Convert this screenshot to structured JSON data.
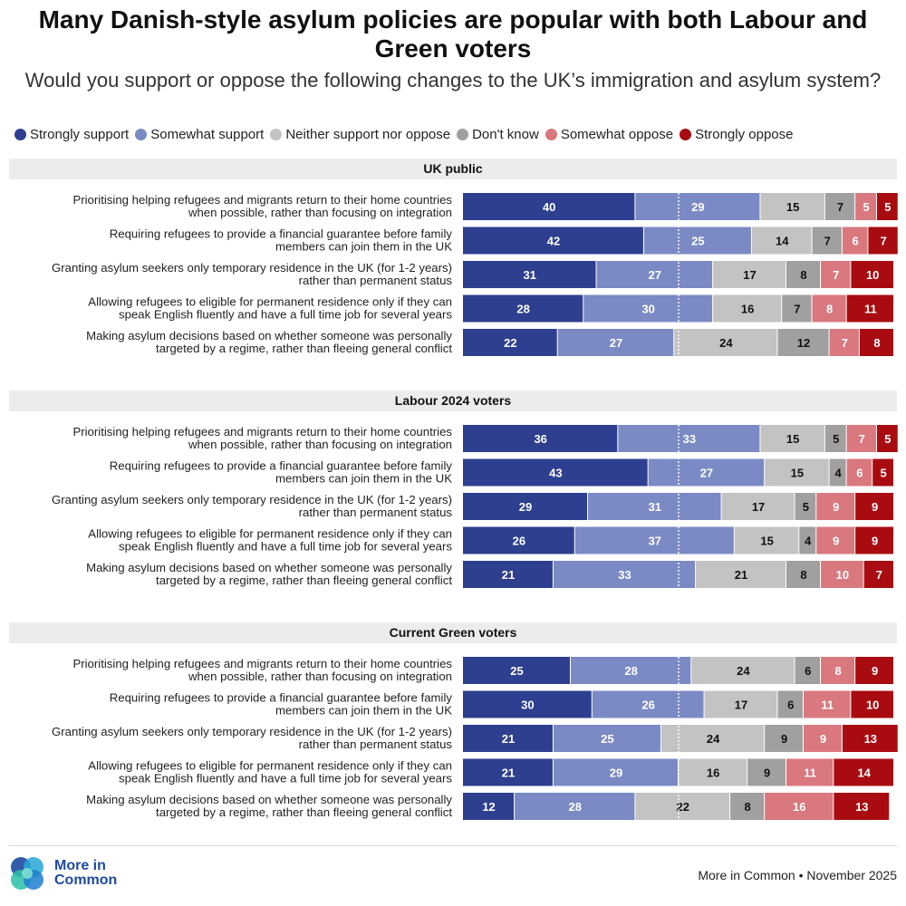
{
  "title": "Many Danish-style asylum policies are popular with both Labour and Green voters",
  "subtitle": "Would you support or oppose the following changes to the UK’s immigration and asylum system?",
  "legend": [
    {
      "label": "Strongly support",
      "color": "#2e3f8f"
    },
    {
      "label": "Somewhat support",
      "color": "#7b8ac4"
    },
    {
      "label": "Neither support nor oppose",
      "color": "#c3c3c3"
    },
    {
      "label": "Don't know",
      "color": "#a0a0a0"
    },
    {
      "label": "Somewhat oppose",
      "color": "#d9787f"
    },
    {
      "label": "Strongly oppose",
      "color": "#a80c10"
    }
  ],
  "chart_data": {
    "type": "bar",
    "orientation": "horizontal-stacked",
    "title": "Many Danish-style asylum policies are popular with both Labour and Green voters",
    "series_names": [
      "Strongly support",
      "Somewhat support",
      "Neither support nor oppose",
      "Don't know",
      "Somewhat oppose",
      "Strongly oppose"
    ],
    "series_colors": [
      "#2e3f8f",
      "#7b8ac4",
      "#c3c3c3",
      "#a0a0a0",
      "#d9787f",
      "#a80c10"
    ],
    "label_colors": [
      "#ffffff",
      "#ffffff",
      "#111111",
      "#111111",
      "#ffffff",
      "#ffffff"
    ],
    "xlim": [
      0,
      100
    ],
    "groups": [
      {
        "name": "UK public",
        "rows": [
          {
            "label": [
              "Prioritising helping refugees and migrants return to their home countries",
              "when possible, rather than focusing on integration"
            ],
            "values": [
              40,
              29,
              15,
              7,
              5,
              5
            ]
          },
          {
            "label": [
              "Requiring refugees to provide a financial guarantee before family",
              "members can join them in the UK"
            ],
            "values": [
              42,
              25,
              14,
              7,
              6,
              7
            ]
          },
          {
            "label": [
              "Granting asylum seekers only temporary residence in the UK (for 1-2 years)",
              "rather than permanent status"
            ],
            "values": [
              31,
              27,
              17,
              8,
              7,
              10
            ]
          },
          {
            "label": [
              "Allowing refugees to eligible for permanent residence only if they can",
              "speak English fluently and have a full time job for several years"
            ],
            "values": [
              28,
              30,
              16,
              7,
              8,
              11
            ]
          },
          {
            "label": [
              "Making asylum decisions based on whether someone was personally",
              "targeted by a regime, rather than fleeing general conflict"
            ],
            "values": [
              22,
              27,
              24,
              12,
              7,
              8
            ]
          }
        ]
      },
      {
        "name": "Labour 2024 voters",
        "rows": [
          {
            "label": [
              "Prioritising helping refugees and migrants return to their home countries",
              "when possible, rather than focusing on integration"
            ],
            "values": [
              36,
              33,
              15,
              5,
              7,
              5
            ]
          },
          {
            "label": [
              "Requiring refugees to provide a financial guarantee before family",
              "members can join them in the UK"
            ],
            "values": [
              43,
              27,
              15,
              4,
              6,
              5
            ]
          },
          {
            "label": [
              "Granting asylum seekers only temporary residence in the UK (for 1-2 years)",
              "rather than permanent status"
            ],
            "values": [
              29,
              31,
              17,
              5,
              9,
              9
            ]
          },
          {
            "label": [
              "Allowing refugees to eligible for permanent residence only if they can",
              "speak English fluently and have a full time job for several years"
            ],
            "values": [
              26,
              37,
              15,
              4,
              9,
              9
            ]
          },
          {
            "label": [
              "Making asylum decisions based on whether someone was personally",
              "targeted by a regime, rather than fleeing general conflict"
            ],
            "values": [
              21,
              33,
              21,
              8,
              10,
              7
            ]
          }
        ]
      },
      {
        "name": "Current Green voters",
        "rows": [
          {
            "label": [
              "Prioritising helping refugees and migrants return to their home countries",
              "when possible, rather than focusing on integration"
            ],
            "values": [
              25,
              28,
              24,
              6,
              8,
              9
            ]
          },
          {
            "label": [
              "Requiring refugees to provide a financial guarantee before family",
              "members can join them in the UK"
            ],
            "values": [
              30,
              26,
              17,
              6,
              11,
              10
            ]
          },
          {
            "label": [
              "Granting asylum seekers only temporary residence in the UK (for 1-2 years)",
              "rather than permanent status"
            ],
            "values": [
              21,
              25,
              24,
              9,
              9,
              13
            ]
          },
          {
            "label": [
              "Allowing refugees to eligible for permanent residence only if they can",
              "speak English fluently and have a full time job for several years"
            ],
            "values": [
              21,
              29,
              16,
              9,
              11,
              14
            ]
          },
          {
            "label": [
              "Making asylum decisions based on whether someone was personally",
              "targeted by a regime, rather than fleeing general conflict"
            ],
            "values": [
              12,
              28,
              22,
              8,
              16,
              13
            ]
          }
        ]
      }
    ]
  },
  "footer": {
    "logo_text": [
      "More in",
      "Common"
    ],
    "source": "More in Common • November 2025"
  }
}
